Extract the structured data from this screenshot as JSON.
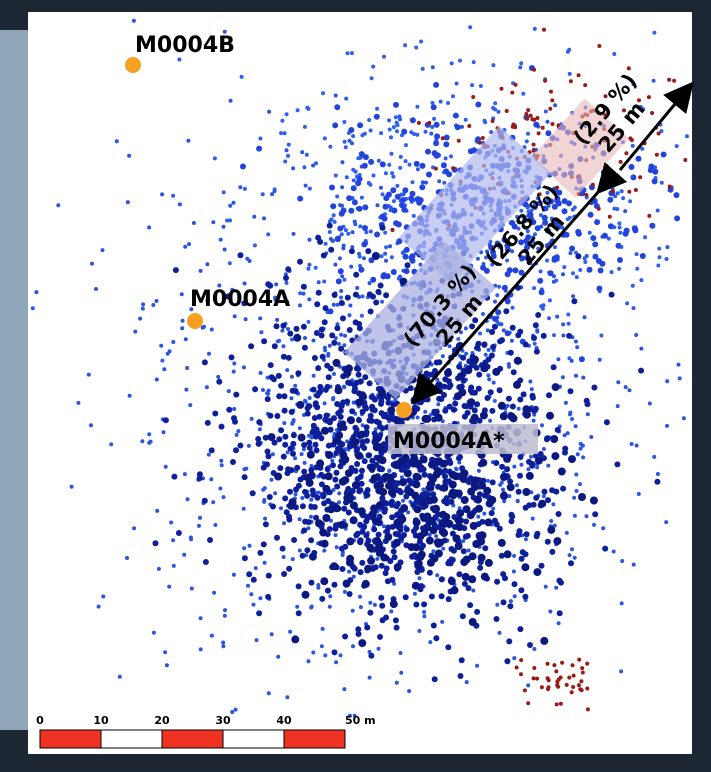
{
  "stations": [
    {
      "label": "M0004B"
    },
    {
      "label": "M0004A"
    },
    {
      "label": "M0004A*"
    }
  ],
  "zones": [
    {
      "percent": "(70.3 %)",
      "distance": "25 m"
    },
    {
      "percent": "(26.8 %)",
      "distance": "25 m"
    },
    {
      "percent": "(2.9 %)",
      "distance": "25 m"
    }
  ],
  "scale_bar": {
    "labels": [
      "0",
      "10",
      "20",
      "30",
      "40",
      "50 m"
    ]
  }
}
